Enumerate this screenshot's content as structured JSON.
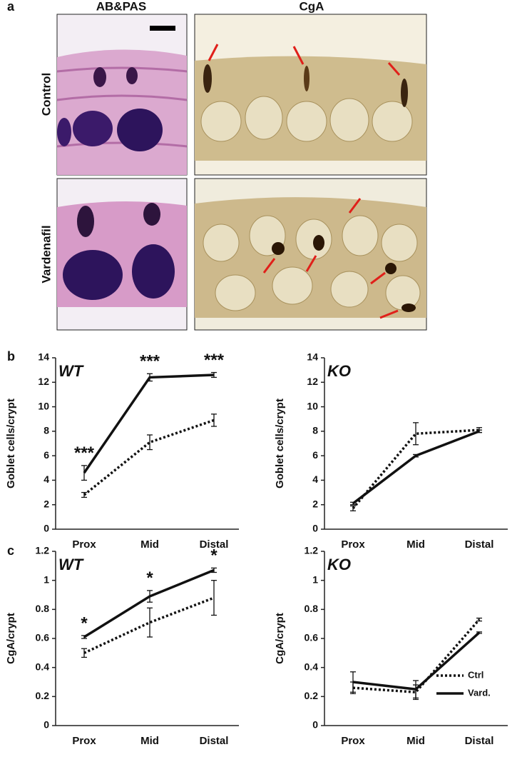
{
  "panel_a": {
    "label": "a",
    "columns": [
      "AB&PAS",
      "CgA"
    ],
    "rows": [
      "Control",
      "Vardenafil"
    ]
  },
  "panel_b": {
    "label": "b"
  },
  "panel_c": {
    "label": "c"
  },
  "chart_data": [
    {
      "type": "line",
      "title": "WT",
      "y_label": "Goblet cells/crypt",
      "categories": [
        "Prox",
        "Mid",
        "Distal"
      ],
      "ylim": [
        0,
        14
      ],
      "yticks": [
        0,
        2,
        4,
        6,
        8,
        10,
        12,
        14
      ],
      "grid": false,
      "series": [
        {
          "color": "#111111",
          "style": "dotted",
          "values": [
            2.8,
            7.1,
            8.9
          ],
          "errors": [
            0.2,
            0.6,
            0.5
          ]
        },
        {
          "color": "#111111",
          "style": "solid",
          "values": [
            4.6,
            12.4,
            12.6
          ],
          "errors": [
            0.6,
            0.3,
            0.2
          ]
        }
      ],
      "annotations": [
        "***",
        "***",
        "***"
      ]
    },
    {
      "type": "line",
      "title": "KO",
      "y_label": "Goblet cells/crypt",
      "categories": [
        "Prox",
        "Mid",
        "Distal"
      ],
      "ylim": [
        0,
        14
      ],
      "yticks": [
        0,
        2,
        4,
        6,
        8,
        10,
        12,
        14
      ],
      "grid": false,
      "series": [
        {
          "color": "#111111",
          "style": "dotted",
          "values": [
            1.7,
            7.8,
            8.1
          ],
          "errors": [
            0.2,
            0.9,
            0.2
          ]
        },
        {
          "color": "#111111",
          "style": "solid",
          "values": [
            2.1,
            6.0,
            8.0
          ],
          "errors": [
            0.1,
            0.1,
            0.1
          ]
        }
      ]
    },
    {
      "type": "line",
      "title": "WT",
      "y_label": "CgA/crypt",
      "categories": [
        "Prox",
        "Mid",
        "Distal"
      ],
      "ylim": [
        0,
        1.2
      ],
      "yticks": [
        0,
        0.2,
        0.4,
        0.6,
        0.8,
        1,
        1.2
      ],
      "grid": false,
      "series": [
        {
          "color": "#111111",
          "style": "dotted",
          "values": [
            0.5,
            0.71,
            0.88
          ],
          "errors": [
            0.03,
            0.1,
            0.12
          ]
        },
        {
          "color": "#111111",
          "style": "solid",
          "values": [
            0.61,
            0.89,
            1.07
          ],
          "errors": [
            0.01,
            0.04,
            0.015
          ]
        }
      ],
      "annotations": [
        "*",
        "*",
        "*"
      ]
    },
    {
      "type": "line",
      "title": "KO",
      "y_label": "CgA/crypt",
      "categories": [
        "Prox",
        "Mid",
        "Distal"
      ],
      "ylim": [
        0,
        1.2
      ],
      "yticks": [
        0,
        0.2,
        0.4,
        0.6,
        0.8,
        1,
        1.2
      ],
      "grid": false,
      "legend": "lower right",
      "series": [
        {
          "name": "Ctrl",
          "color": "#111111",
          "style": "dotted",
          "values": [
            0.26,
            0.23,
            0.73
          ],
          "errors": [
            0.04,
            0.05,
            0.01
          ]
        },
        {
          "name": "Vard.",
          "color": "#111111",
          "style": "solid",
          "values": [
            0.3,
            0.25,
            0.64
          ],
          "errors": [
            0.07,
            0.06,
            0.005
          ]
        }
      ]
    }
  ]
}
